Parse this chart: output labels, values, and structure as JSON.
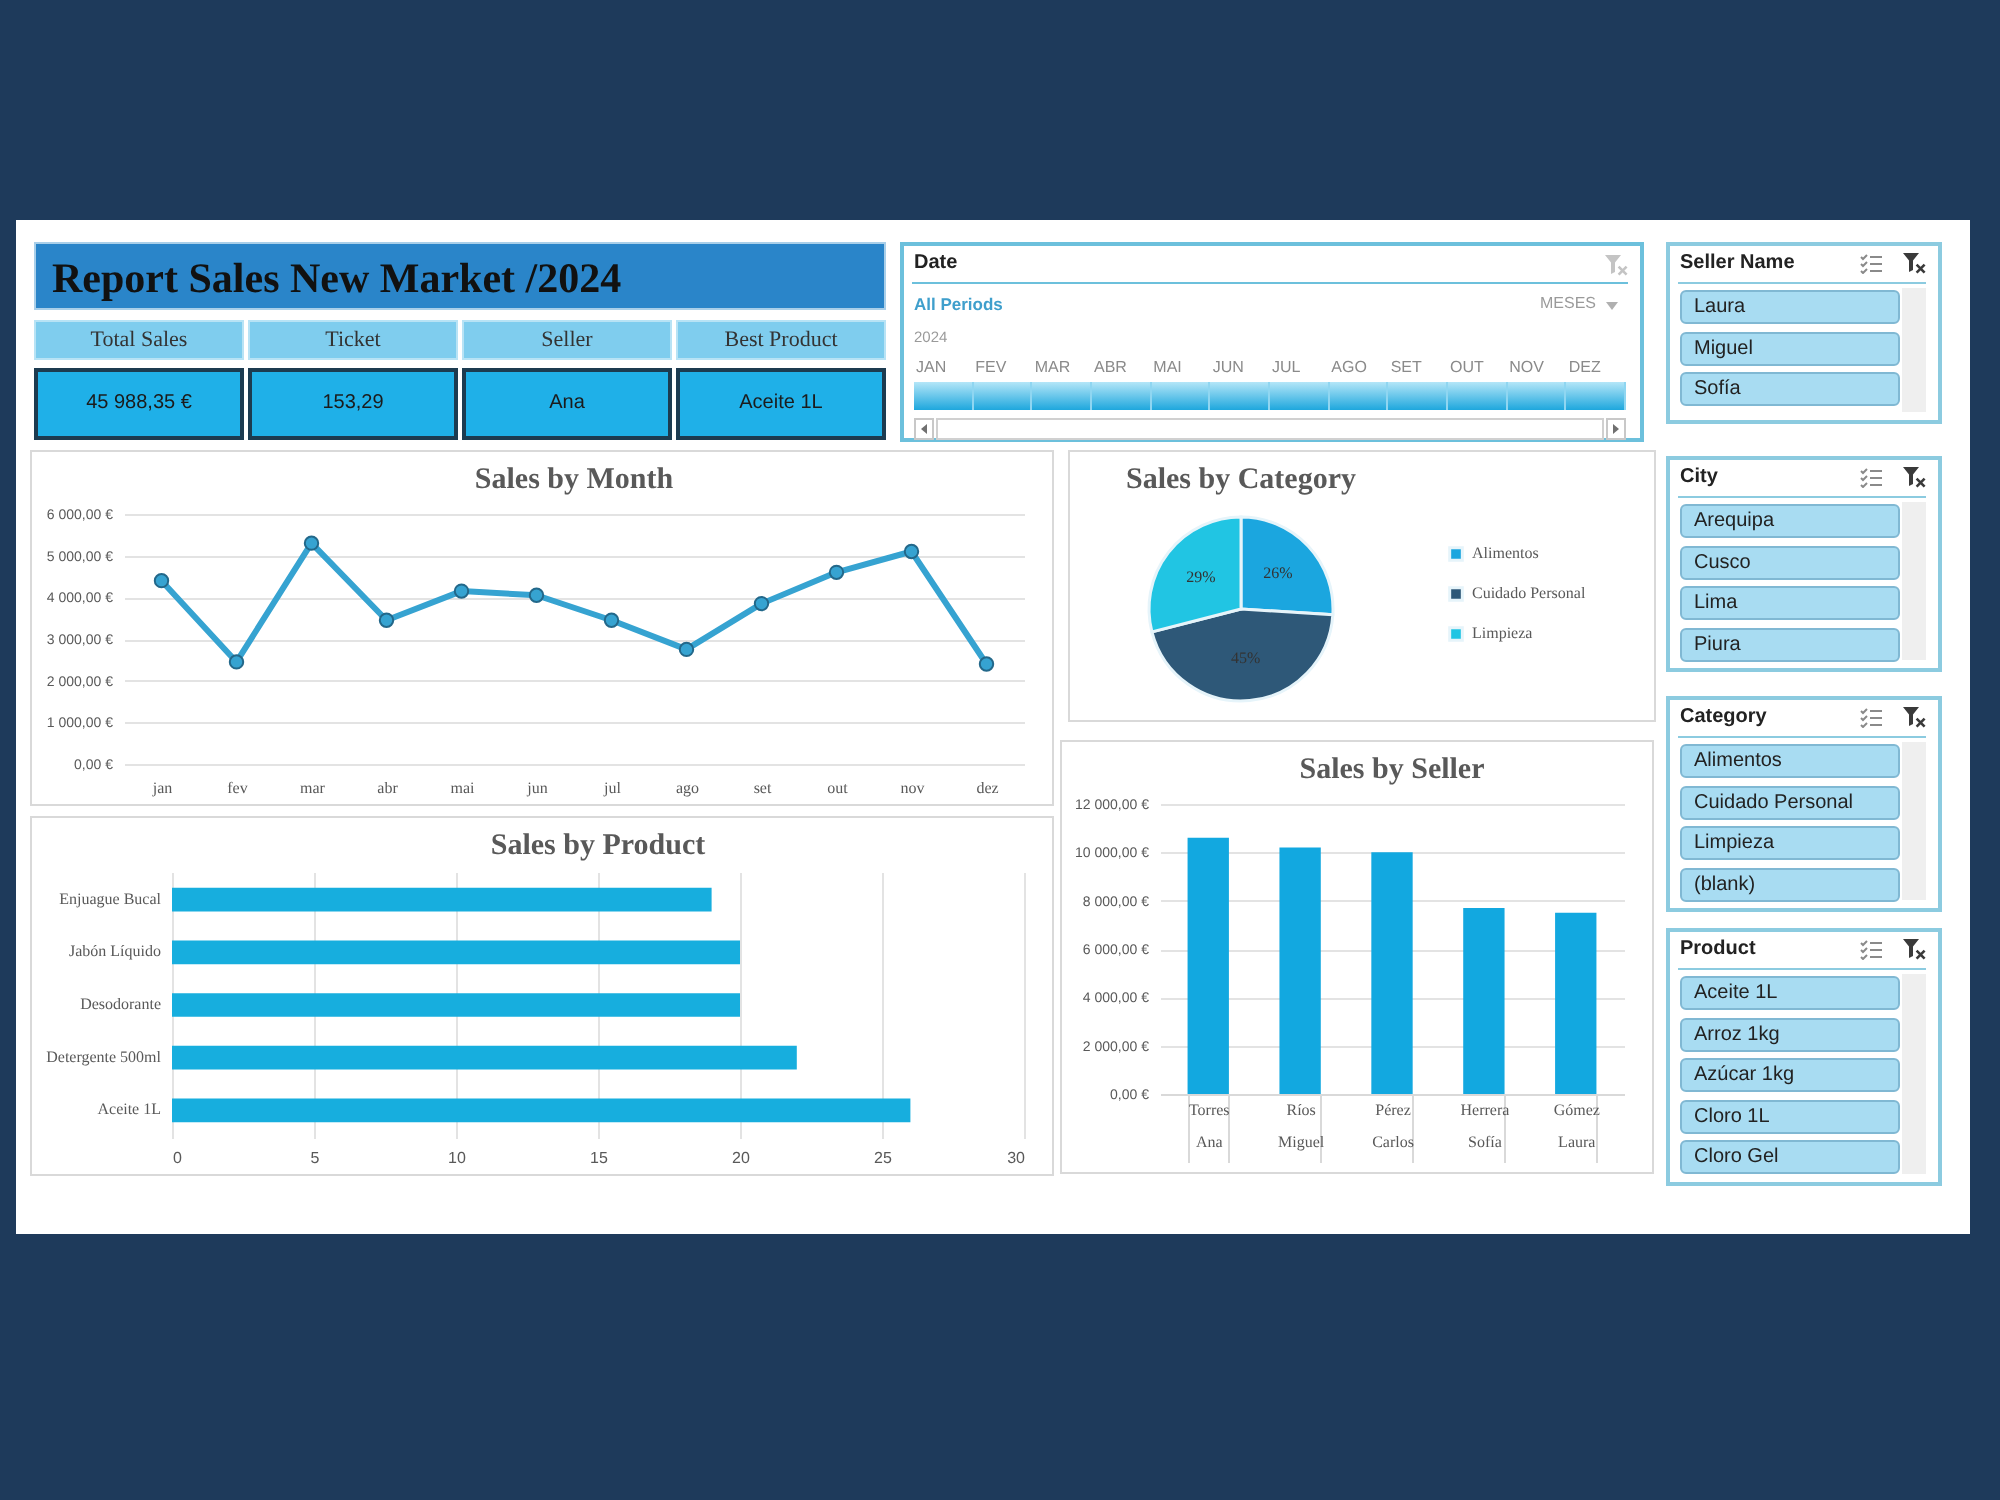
{
  "chart_data": [
    {
      "type": "other",
      "title": "Report Sales New Market /2024",
      "annotations": [
        "Total Sales",
        "Ticket",
        "Seller",
        "Best Product",
        "45 988,35 €",
        "153,29",
        "Ana",
        "Aceite 1L"
      ]
    },
    {
      "type": "other",
      "title": "Date",
      "annotations": [
        "All Periods",
        "MESES",
        "2024"
      ],
      "categories": [
        "JAN",
        "FEV",
        "MAR",
        "ABR",
        "MAI",
        "JUN",
        "JUL",
        "AGO",
        "SET",
        "OUT",
        "NOV",
        "DEZ"
      ]
    },
    {
      "type": "other",
      "title": "Seller Name",
      "categories": [
        "Laura",
        "Miguel",
        "Sofía"
      ]
    },
    {
      "type": "line",
      "title": "Sales by Month",
      "categories": [
        "jan",
        "fev",
        "mar",
        "abr",
        "mai",
        "jun",
        "jul",
        "ago",
        "set",
        "out",
        "nov",
        "dez"
      ],
      "values": [
        4400,
        2450,
        5300,
        3450,
        4150,
        4050,
        3450,
        2750,
        3850,
        4600,
        5100,
        2400
      ],
      "color": "#36a3d1",
      "marker": "circle",
      "ylim": [
        0,
        6000
      ],
      "yticks": [
        {
          "value": 0,
          "label": "0,00 €"
        },
        {
          "value": 1000,
          "label": "1 000,00 €"
        },
        {
          "value": 2000,
          "label": "2 000,00 €"
        },
        {
          "value": 3000,
          "label": "3 000,00 €"
        },
        {
          "value": 4000,
          "label": "4 000,00 €"
        },
        {
          "value": 5000,
          "label": "5 000,00 €"
        },
        {
          "value": 6000,
          "label": "6 000,00 €"
        }
      ],
      "grid": "y"
    },
    {
      "type": "pie",
      "title": "Sales by Category",
      "categories": [
        "Alimentos",
        "Cuidado Personal",
        "Limpieza"
      ],
      "values": [
        26,
        45,
        29
      ],
      "colors": [
        "#1ba6df",
        "#2e5878",
        "#21c5e3"
      ],
      "value_labels": [
        "26%",
        "45%",
        "29%"
      ],
      "legend": "right"
    },
    {
      "type": "other",
      "title": "City",
      "categories": [
        "Arequipa",
        "Cusco",
        "Lima",
        "Piura"
      ]
    },
    {
      "type": "other",
      "title": "Category",
      "categories": [
        "Alimentos",
        "Cuidado Personal",
        "Limpieza",
        "(blank)"
      ]
    },
    {
      "type": "bar",
      "title": "Sales by Product",
      "orientation": "horizontal",
      "categories": [
        "Enjuague Bucal",
        "Jabón Líquido",
        "Desodorante",
        "Detergente 500ml",
        "Aceite 1L"
      ],
      "values": [
        19,
        20,
        20,
        22,
        26
      ],
      "color": "#17aede",
      "xlim": [
        0,
        30
      ],
      "xticks": [
        0,
        5,
        10,
        15,
        20,
        25,
        30
      ],
      "grid": "x"
    },
    {
      "type": "bar",
      "title": "Sales by Seller",
      "categories": [
        "Torres Ana",
        "Ríos Miguel",
        "Pérez Carlos",
        "Herrera Sofía",
        "Gómez Laura"
      ],
      "values": [
        10600,
        10200,
        10000,
        7700,
        7500
      ],
      "color": "#12a8e0",
      "ylim": [
        0,
        12000
      ],
      "yticks": [
        {
          "value": 0,
          "label": "0,00 €"
        },
        {
          "value": 2000,
          "label": "2 000,00 €"
        },
        {
          "value": 4000,
          "label": "4 000,00 €"
        },
        {
          "value": 6000,
          "label": "6 000,00 €"
        },
        {
          "value": 8000,
          "label": "8 000,00 €"
        },
        {
          "value": 10000,
          "label": "10 000,00 €"
        },
        {
          "value": 12000,
          "label": "12 000,00 €"
        }
      ],
      "grid": "y"
    },
    {
      "type": "other",
      "title": "Product",
      "categories": [
        "Aceite 1L",
        "Arroz 1kg",
        "Azúcar 1kg",
        "Cloro 1L",
        "Cloro Gel"
      ]
    }
  ]
}
